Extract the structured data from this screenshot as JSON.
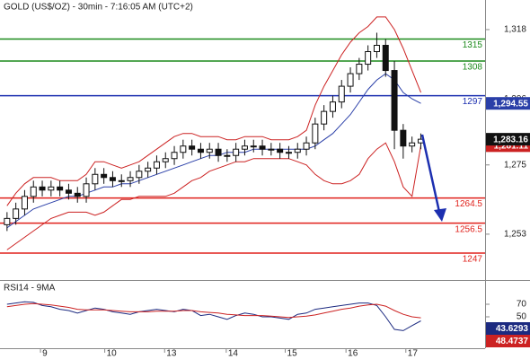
{
  "chart_data": [
    {
      "type": "candlestick",
      "title": "GOLD (US$/OZ) - 30min - 7:16:05 AM (UTC+2)",
      "xlim": [
        -0.8,
        54.3
      ],
      "ylim": [
        1239,
        1327.4
      ],
      "yticks": [
        {
          "value": 1318,
          "label": "1,318"
        },
        {
          "value": 1296,
          "label": "1,296"
        },
        {
          "value": 1275,
          "label": "1,275"
        },
        {
          "value": 1253,
          "label": "1,253"
        }
      ],
      "open": [
        1256,
        1258,
        1261,
        1265,
        1268,
        1267,
        1268,
        1267,
        1266,
        1265,
        1269,
        1272,
        1271,
        1270,
        1270,
        1271,
        1273,
        1274,
        1276,
        1277,
        1279,
        1281,
        1280,
        1279,
        1280,
        1278,
        1278,
        1280,
        1281,
        1281,
        1280,
        1280,
        1279,
        1279,
        1280,
        1282,
        1288,
        1292,
        1295,
        1300,
        1304,
        1307,
        1311,
        1313,
        1305,
        1286,
        1281,
        1282
      ],
      "high": [
        1260,
        1263,
        1267,
        1270,
        1270,
        1270,
        1270,
        1269,
        1268,
        1271,
        1274,
        1274,
        1273,
        1272,
        1273,
        1275,
        1276,
        1278,
        1279,
        1281,
        1283,
        1283,
        1282,
        1282,
        1282,
        1280,
        1282,
        1283,
        1283,
        1283,
        1282,
        1282,
        1281,
        1282,
        1284,
        1290,
        1294,
        1297,
        1302,
        1306,
        1309,
        1313,
        1317,
        1315,
        1308,
        1288,
        1284,
        1285
      ],
      "low": [
        1254,
        1256,
        1259,
        1263,
        1265,
        1265,
        1265,
        1264,
        1263,
        1263,
        1267,
        1269,
        1268,
        1268,
        1268,
        1269,
        1271,
        1272,
        1274,
        1275,
        1277,
        1278,
        1277,
        1277,
        1276,
        1276,
        1276,
        1278,
        1279,
        1278,
        1278,
        1277,
        1277,
        1277,
        1278,
        1280,
        1286,
        1290,
        1293,
        1298,
        1302,
        1305,
        1309,
        1303,
        1280,
        1277,
        1279,
        1280
      ],
      "close": [
        1258,
        1261,
        1265,
        1268,
        1267,
        1268,
        1267,
        1266,
        1265,
        1269,
        1272,
        1271,
        1270,
        1270,
        1271,
        1273,
        1274,
        1276,
        1277,
        1279,
        1281,
        1280,
        1279,
        1280,
        1278,
        1278,
        1280,
        1281,
        1281,
        1280,
        1280,
        1279,
        1279,
        1280,
        1282,
        1288,
        1292,
        1295,
        1300,
        1304,
        1307,
        1311,
        1313,
        1305,
        1286,
        1281,
        1282,
        1283.16
      ],
      "close_label": "1,283.16",
      "overlays": [
        {
          "color": "#2a3fa8",
          "values": [
            1255,
            1257,
            1259,
            1261,
            1262,
            1263,
            1264,
            1265,
            1265,
            1266,
            1267,
            1268,
            1268,
            1269,
            1269,
            1270,
            1271,
            1272,
            1273,
            1274,
            1275,
            1276,
            1277,
            1278,
            1278,
            1279,
            1279,
            1279,
            1280,
            1280,
            1280,
            1280,
            1280,
            1280,
            1280,
            1281,
            1283,
            1285,
            1288,
            1291,
            1295,
            1299,
            1302,
            1304,
            1302,
            1298,
            1296,
            1294.55
          ],
          "last_label": "1,294.55"
        },
        {
          "color": "#cc2222",
          "values": [
            1262,
            1266,
            1269,
            1271,
            1271,
            1271,
            1270,
            1270,
            1270,
            1272,
            1276,
            1276,
            1275,
            1274,
            1275,
            1276,
            1278,
            1280,
            1282,
            1284,
            1285,
            1285,
            1284,
            1284,
            1284,
            1283,
            1283,
            1284,
            1284,
            1284,
            1283,
            1283,
            1283,
            1284,
            1286,
            1294,
            1300,
            1305,
            1310,
            1314,
            1317,
            1319,
            1322,
            1322,
            1318,
            1312,
            1305,
            1298
          ]
        },
        {
          "color": "#cc2222",
          "values": [
            1248,
            1250,
            1252,
            1254,
            1256,
            1258,
            1259,
            1260,
            1260,
            1260,
            1259,
            1260,
            1262,
            1264,
            1264,
            1265,
            1265,
            1265,
            1265,
            1266,
            1268,
            1270,
            1271,
            1273,
            1274,
            1275,
            1276,
            1276,
            1277,
            1277,
            1277,
            1277,
            1277,
            1276,
            1275,
            1272,
            1270,
            1269,
            1269,
            1270,
            1272,
            1277,
            1280,
            1282,
            1276,
            1268,
            1265,
            1281.11
          ],
          "last_label": "1,281.11"
        }
      ],
      "levels": [
        {
          "value": 1315,
          "color": "#1a8a1a"
        },
        {
          "value": 1308,
          "color": "#1a8a1a"
        },
        {
          "value": 1297,
          "color": "#1c2fb0"
        },
        {
          "value": 1264.5,
          "color": "#e0211b"
        },
        {
          "value": 1256.5,
          "color": "#e0211b"
        },
        {
          "value": 1247,
          "color": "#e0211b"
        }
      ]
    },
    {
      "type": "line",
      "title": "RSI14 - 9MA",
      "xlim": [
        -0.8,
        54.3
      ],
      "ylim": [
        0,
        100
      ],
      "yticks": [
        50,
        70
      ],
      "xticks": [
        {
          "value": 3.8,
          "label": "9"
        },
        {
          "value": 11.1,
          "label": "10"
        },
        {
          "value": 17.9,
          "label": "13"
        },
        {
          "value": 24.9,
          "label": "14"
        },
        {
          "value": 31.6,
          "label": "15"
        },
        {
          "value": 38.5,
          "label": "16"
        },
        {
          "value": 45.3,
          "label": "17"
        }
      ],
      "series": [
        {
          "color": "#1c2a80",
          "values": [
            70,
            72,
            74,
            73,
            68,
            66,
            62,
            60,
            56,
            60,
            64,
            62,
            58,
            56,
            54,
            58,
            60,
            62,
            60,
            58,
            62,
            60,
            52,
            54,
            50,
            46,
            52,
            56,
            54,
            50,
            50,
            48,
            46,
            54,
            56,
            62,
            64,
            66,
            68,
            70,
            72,
            72,
            68,
            50,
            30,
            28,
            36,
            43.6293
          ],
          "last_label": "43.6293"
        },
        {
          "color": "#cc2222",
          "values": [
            66,
            68,
            70,
            71,
            70,
            69,
            67,
            65,
            62,
            61,
            61,
            61,
            60,
            59,
            58,
            58,
            58,
            59,
            59,
            59,
            60,
            60,
            58,
            57,
            56,
            54,
            53,
            52,
            52,
            52,
            51,
            50,
            49,
            50,
            51,
            53,
            56,
            59,
            62,
            64,
            67,
            69,
            70,
            67,
            60,
            54,
            50,
            48.4737
          ],
          "last_label": "48.4737"
        }
      ]
    }
  ]
}
